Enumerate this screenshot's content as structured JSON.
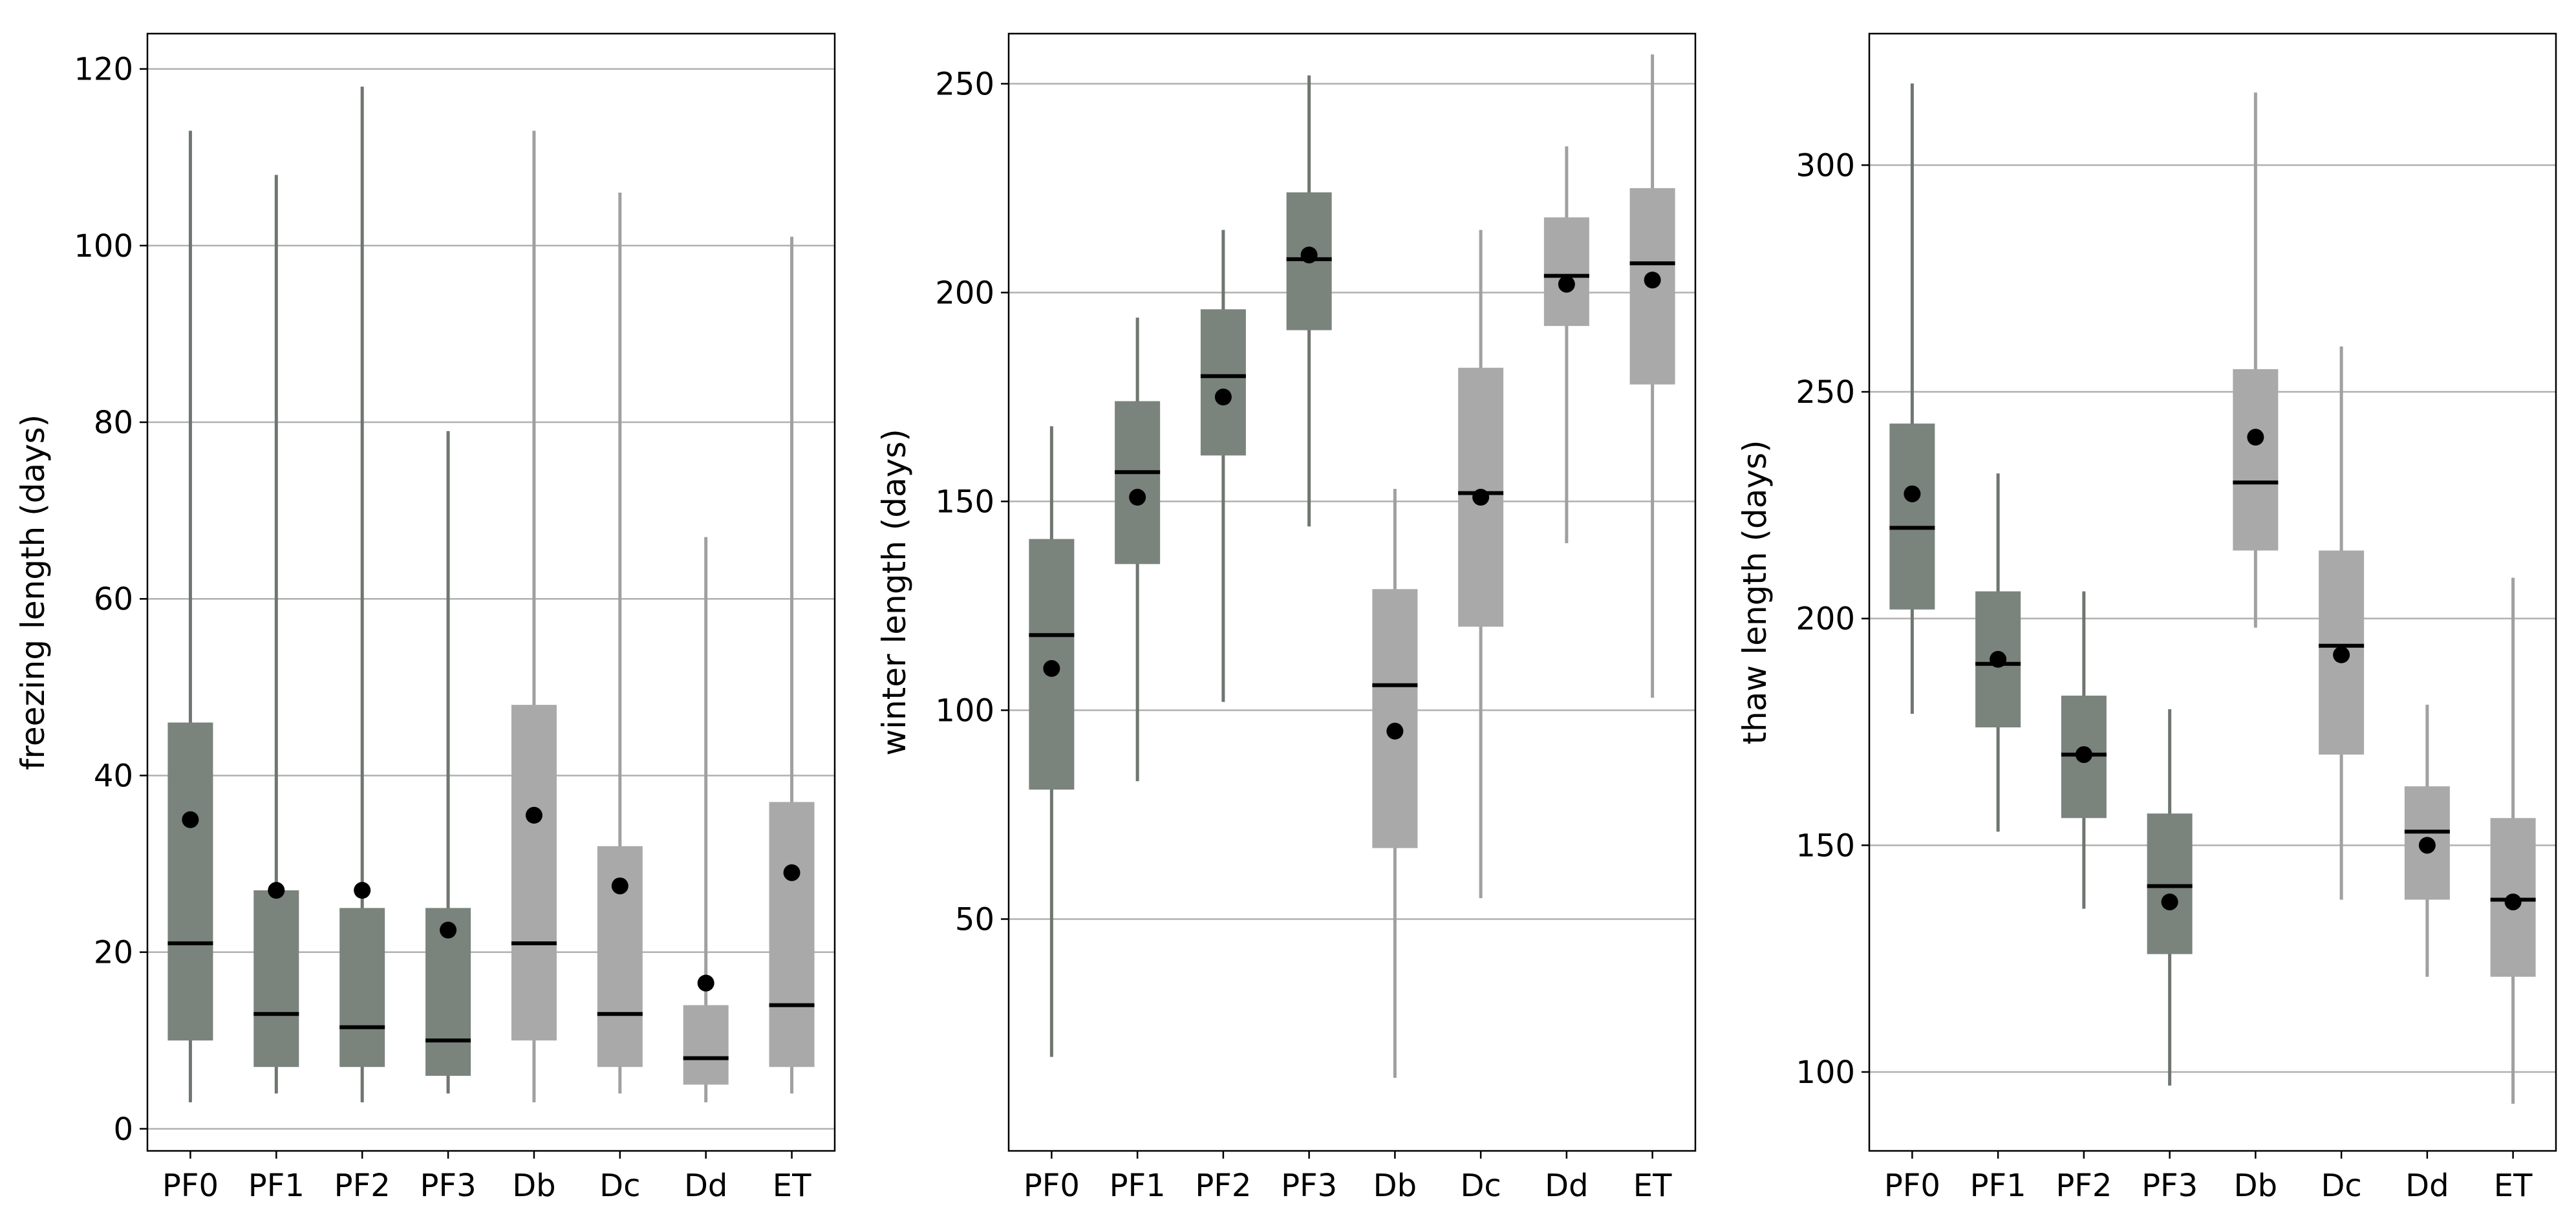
{
  "chart_data": [
    {
      "type": "box",
      "ylabel": "freezing length (days)",
      "xlabel": "",
      "ylim": [
        -2.5,
        124
      ],
      "yticks": [
        0,
        20,
        40,
        60,
        80,
        100,
        120
      ],
      "categories": [
        "PF0",
        "PF1",
        "PF2",
        "PF3",
        "Db",
        "Dc",
        "Dd",
        "ET"
      ],
      "grid": "y",
      "boxes": [
        {
          "whisker_low": 3,
          "q1": 10,
          "median": 21,
          "q3": 46,
          "whisker_high": 113,
          "mean": 35.0
        },
        {
          "whisker_low": 4,
          "q1": 7,
          "median": 13,
          "q3": 27,
          "whisker_high": 108,
          "mean": 27.0
        },
        {
          "whisker_low": 3,
          "q1": 7,
          "median": 11.5,
          "q3": 25,
          "whisker_high": 118,
          "mean": 27.0
        },
        {
          "whisker_low": 4,
          "q1": 6,
          "median": 10,
          "q3": 25,
          "whisker_high": 79,
          "mean": 22.5
        },
        {
          "whisker_low": 3,
          "q1": 10,
          "median": 21,
          "q3": 48,
          "whisker_high": 113,
          "mean": 35.5
        },
        {
          "whisker_low": 4,
          "q1": 7,
          "median": 13,
          "q3": 32,
          "whisker_high": 106,
          "mean": 27.5
        },
        {
          "whisker_low": 3,
          "q1": 5,
          "median": 8,
          "q3": 14,
          "whisker_high": 67,
          "mean": 16.5
        },
        {
          "whisker_low": 4,
          "q1": 7,
          "median": 14,
          "q3": 37,
          "whisker_high": 101,
          "mean": 29.0
        }
      ]
    },
    {
      "type": "box",
      "ylabel": "winter length (days)",
      "xlabel": "",
      "ylim": [
        -5.5,
        262
      ],
      "yticks": [
        50,
        100,
        150,
        200,
        250
      ],
      "categories": [
        "PF0",
        "PF1",
        "PF2",
        "PF3",
        "Db",
        "Dc",
        "Dd",
        "ET"
      ],
      "grid": "y",
      "boxes": [
        {
          "whisker_low": 17,
          "q1": 81,
          "median": 118,
          "q3": 141,
          "whisker_high": 168,
          "mean": 110
        },
        {
          "whisker_low": 83,
          "q1": 135,
          "median": 157,
          "q3": 174,
          "whisker_high": 194,
          "mean": 151
        },
        {
          "whisker_low": 102,
          "q1": 161,
          "median": 180,
          "q3": 196,
          "whisker_high": 215,
          "mean": 175
        },
        {
          "whisker_low": 144,
          "q1": 191,
          "median": 208,
          "q3": 224,
          "whisker_high": 252,
          "mean": 209
        },
        {
          "whisker_low": 12,
          "q1": 67,
          "median": 106,
          "q3": 129,
          "whisker_high": 153,
          "mean": 95
        },
        {
          "whisker_low": 55,
          "q1": 120,
          "median": 152,
          "q3": 182,
          "whisker_high": 215,
          "mean": 151
        },
        {
          "whisker_low": 140,
          "q1": 192,
          "median": 204,
          "q3": 218,
          "whisker_high": 235,
          "mean": 202
        },
        {
          "whisker_low": 103,
          "q1": 178,
          "median": 207,
          "q3": 225,
          "whisker_high": 257,
          "mean": 203
        }
      ]
    },
    {
      "type": "box",
      "ylabel": "thaw length (days)",
      "xlabel": "",
      "ylim": [
        82.6,
        329
      ],
      "yticks": [
        100,
        150,
        200,
        250,
        300
      ],
      "categories": [
        "PF0",
        "PF1",
        "PF2",
        "PF3",
        "Db",
        "Dc",
        "Dd",
        "ET"
      ],
      "grid": "y",
      "boxes": [
        {
          "whisker_low": 179,
          "q1": 202,
          "median": 220,
          "q3": 243,
          "whisker_high": 318,
          "mean": 227.5
        },
        {
          "whisker_low": 153,
          "q1": 176,
          "median": 190,
          "q3": 206,
          "whisker_high": 232,
          "mean": 191
        },
        {
          "whisker_low": 136,
          "q1": 156,
          "median": 170,
          "q3": 183,
          "whisker_high": 206,
          "mean": 170
        },
        {
          "whisker_low": 97,
          "q1": 126,
          "median": 141,
          "q3": 157,
          "whisker_high": 180,
          "mean": 137.5
        },
        {
          "whisker_low": 198,
          "q1": 215,
          "median": 230,
          "q3": 255,
          "whisker_high": 316,
          "mean": 240
        },
        {
          "whisker_low": 138,
          "q1": 170,
          "median": 194,
          "q3": 215,
          "whisker_high": 260,
          "mean": 192
        },
        {
          "whisker_low": 121,
          "q1": 138,
          "median": 153,
          "q3": 163,
          "whisker_high": 181,
          "mean": 150
        },
        {
          "whisker_low": 93,
          "q1": 121,
          "median": 138,
          "q3": 156,
          "whisker_high": 209,
          "mean": 137.5
        }
      ]
    }
  ],
  "colors": {
    "pf_group_box": "#7a837c",
    "pf_group_whisker": "#6f7670",
    "d_group_box": "#a9a9a9",
    "d_group_whisker": "#a0a0a0",
    "median_line": "#000000",
    "mean_marker": "#000000",
    "grid": "#b0b0b0",
    "axes": "#000000"
  }
}
